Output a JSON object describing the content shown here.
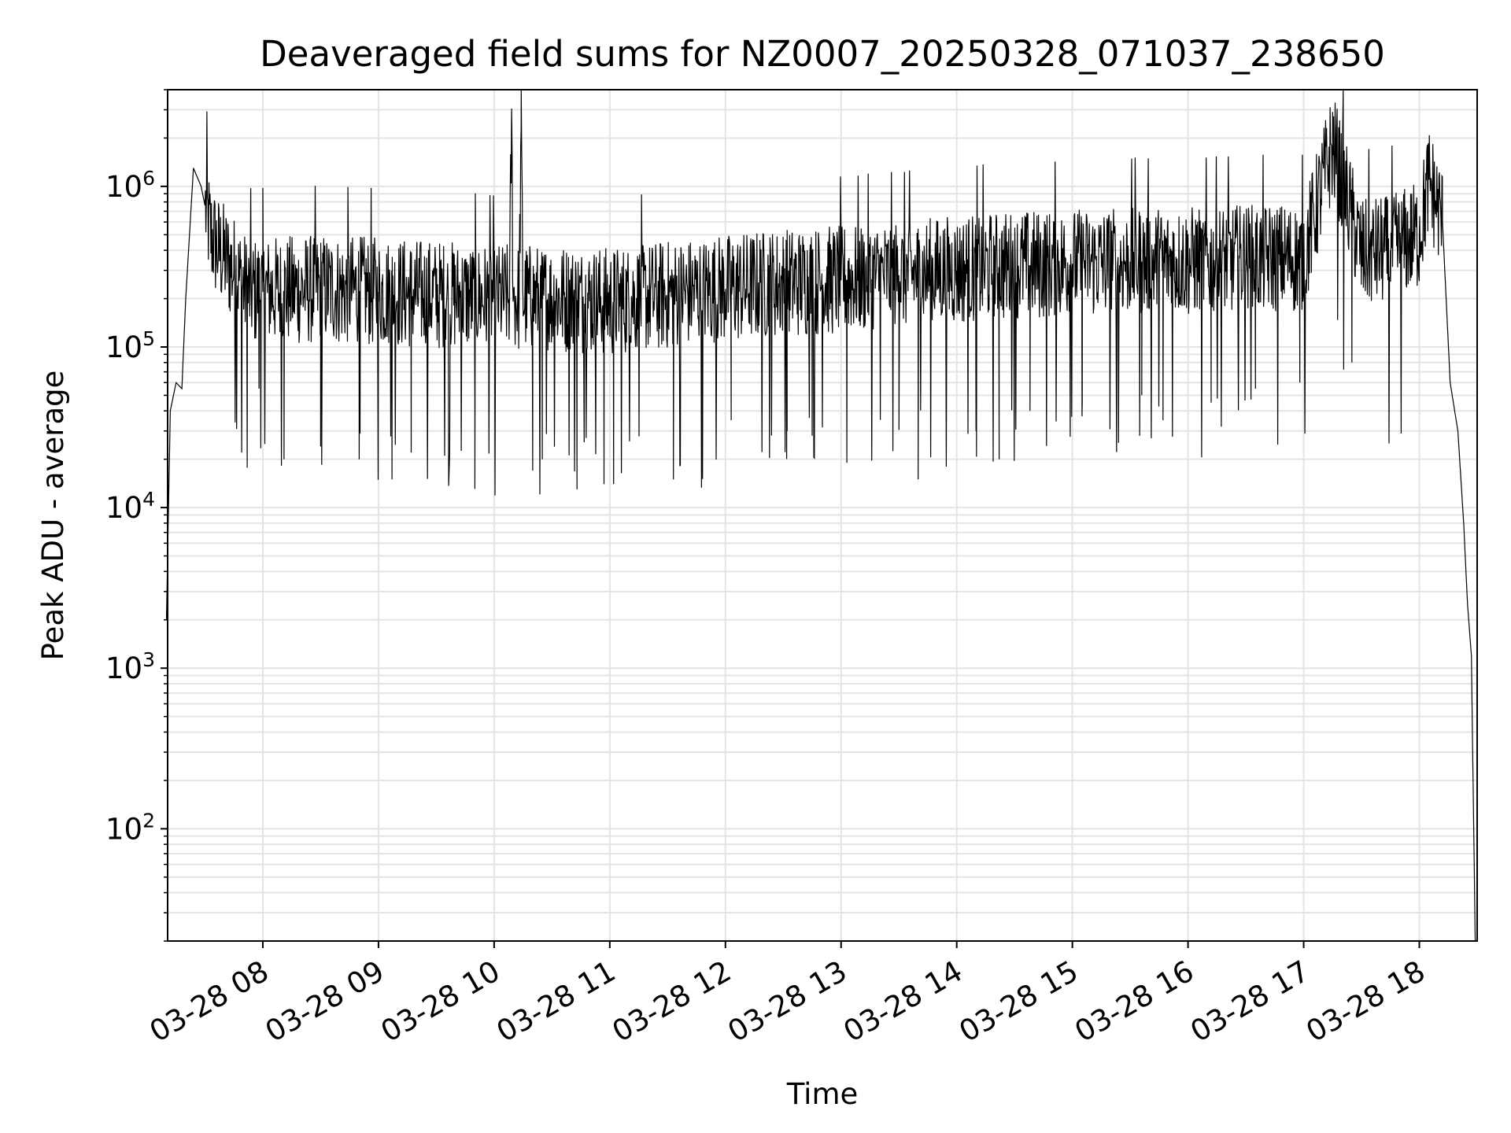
{
  "chart_data": {
    "type": "line",
    "title": "Deaveraged field sums for NZ0007_20250328_071037_238650",
    "xlabel": "Time",
    "ylabel": "Peak ADU - average",
    "yscale": "log",
    "grid": true,
    "line_color": "#000000",
    "grid_color": "#e4e4e4",
    "xlim": [
      "2025-03-28 07:10:37",
      "2025-03-28 18:30:00"
    ],
    "ylim": [
      20,
      4000000
    ],
    "x_tick_labels": [
      "03-28 08",
      "03-28 09",
      "03-28 10",
      "03-28 11",
      "03-28 12",
      "03-28 13",
      "03-28 14",
      "03-28 15",
      "03-28 16",
      "03-28 17",
      "03-28 18"
    ],
    "x_tick_values": [
      "2025-03-28 08:00",
      "2025-03-28 09:00",
      "2025-03-28 10:00",
      "2025-03-28 11:00",
      "2025-03-28 12:00",
      "2025-03-28 13:00",
      "2025-03-28 14:00",
      "2025-03-28 15:00",
      "2025-03-28 16:00",
      "2025-03-28 17:00",
      "2025-03-28 18:00"
    ],
    "y_tick_values": [
      100,
      1000,
      10000,
      100000,
      1000000
    ],
    "y_tick_labels": [
      {
        "base": "10",
        "exp": "2"
      },
      {
        "base": "10",
        "exp": "3"
      },
      {
        "base": "10",
        "exp": "4"
      },
      {
        "base": "10",
        "exp": "5"
      },
      {
        "base": "10",
        "exp": "6"
      }
    ],
    "series": [
      {
        "x": [
          "2025-03-28 07:10",
          "2025-03-28 07:12",
          "2025-03-28 07:15",
          "2025-03-28 07:18",
          "2025-03-28 07:20",
          "2025-03-28 07:24",
          "2025-03-28 07:28",
          "2025-03-28 07:33",
          "2025-03-28 07:37",
          "2025-03-28 07:45",
          "2025-03-28 07:52",
          "2025-03-28 08:00",
          "2025-03-28 08:30",
          "2025-03-28 09:00",
          "2025-03-28 09:30",
          "2025-03-28 10:00",
          "2025-03-28 10:08",
          "2025-03-28 10:09",
          "2025-03-28 10:10",
          "2025-03-28 10:13",
          "2025-03-28 10:14",
          "2025-03-28 10:15",
          "2025-03-28 10:30",
          "2025-03-28 11:00",
          "2025-03-28 11:30",
          "2025-03-28 12:00",
          "2025-03-28 12:30",
          "2025-03-28 13:00",
          "2025-03-28 13:30",
          "2025-03-28 14:00",
          "2025-03-28 14:30",
          "2025-03-28 15:00",
          "2025-03-28 15:30",
          "2025-03-28 16:00",
          "2025-03-28 16:30",
          "2025-03-28 17:00",
          "2025-03-28 17:15",
          "2025-03-28 17:30",
          "2025-03-28 17:45",
          "2025-03-28 18:00",
          "2025-03-28 18:05",
          "2025-03-28 18:12",
          "2025-03-28 18:16",
          "2025-03-28 18:20",
          "2025-03-28 18:23",
          "2025-03-28 18:25",
          "2025-03-28 18:27",
          "2025-03-28 18:29"
        ],
        "y": [
          2000,
          40000,
          60000,
          55000,
          200000,
          1300000,
          1000000,
          500000,
          400000,
          300000,
          220000,
          220000,
          230000,
          220000,
          210000,
          200000,
          200000,
          2400000,
          200000,
          200000,
          2300000,
          200000,
          200000,
          190000,
          210000,
          230000,
          250000,
          260000,
          280000,
          300000,
          320000,
          330000,
          340000,
          340000,
          350000,
          360000,
          1800000,
          380000,
          400000,
          500000,
          1100000,
          600000,
          60000,
          30000,
          8000,
          2500,
          1200,
          20
        ]
      }
    ],
    "noise_dips": {
      "x": [
        "2025-03-28 07:58",
        "2025-03-28 08:11",
        "2025-03-28 08:30",
        "2025-03-28 08:50",
        "2025-03-28 09:07",
        "2025-03-28 09:17",
        "2025-03-28 09:50",
        "2025-03-28 10:20",
        "2025-03-28 10:25",
        "2025-03-28 10:43",
        "2025-03-28 10:57",
        "2025-03-28 11:02",
        "2025-03-28 11:33",
        "2025-03-28 12:03",
        "2025-03-28 12:32",
        "2025-03-28 12:45",
        "2025-03-28 13:03",
        "2025-03-28 13:40",
        "2025-03-28 14:10",
        "2025-03-28 14:22",
        "2025-03-28 14:38",
        "2025-03-28 15:05",
        "2025-03-28 15:36",
        "2025-03-28 15:47",
        "2025-03-28 16:12",
        "2025-03-28 16:35",
        "2025-03-28 16:58",
        "2025-03-28 17:25"
      ],
      "y": [
        55000,
        20000,
        24000,
        20000,
        15000,
        22000,
        40000,
        17000,
        20000,
        13000,
        14000,
        14000,
        15000,
        35000,
        30000,
        28000,
        19000,
        15000,
        30000,
        20000,
        40000,
        37000,
        50000,
        35000,
        45000,
        55000,
        60000,
        80000
      ]
    }
  }
}
